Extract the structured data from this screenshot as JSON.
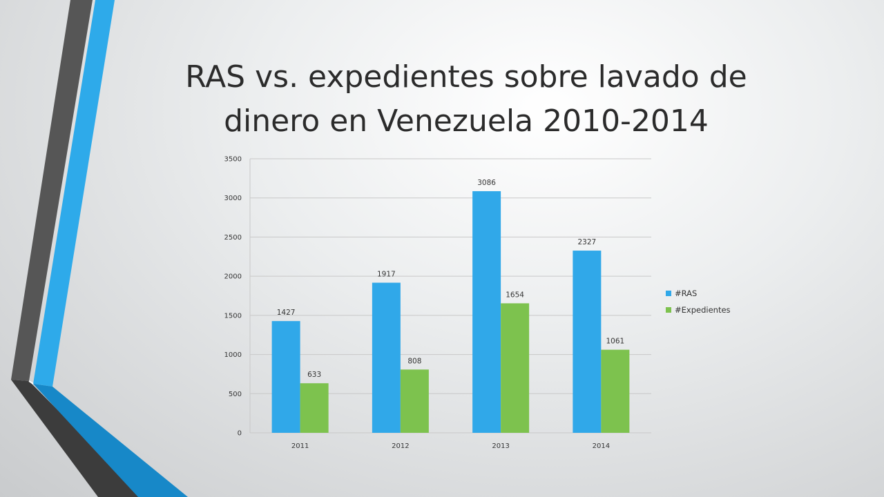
{
  "slide": {
    "title": "RAS vs. expedientes sobre lavado de dinero en Venezuela 2010-2014"
  },
  "colors": {
    "ras": "#30A8E9",
    "expedientes": "#7DC24E",
    "deco_dark": "#555555",
    "deco_blue": "#2EAAEA"
  },
  "chart_data": {
    "type": "bar",
    "title": "",
    "xlabel": "",
    "ylabel": "",
    "categories": [
      "2011",
      "2012",
      "2013",
      "2014"
    ],
    "series": [
      {
        "name": "#RAS",
        "values": [
          1427,
          1917,
          3086,
          2327
        ]
      },
      {
        "name": "#Expedientes",
        "values": [
          633,
          808,
          1654,
          1061
        ]
      }
    ],
    "ylim": [
      0,
      3500
    ],
    "yticks": [
      0,
      500,
      1000,
      1500,
      2000,
      2500,
      3000,
      3500
    ],
    "grid": true,
    "legend_position": "right",
    "data_labels": true
  }
}
